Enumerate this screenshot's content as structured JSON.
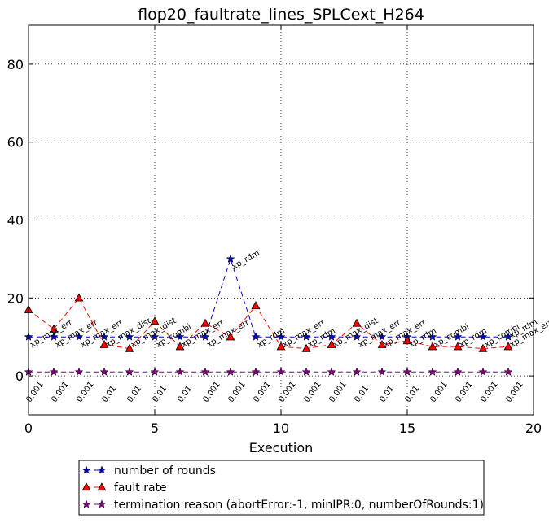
{
  "chart_data": {
    "type": "line",
    "title": "flop20_faultrate_lines_SPLCext_H264",
    "xlabel": "Execution",
    "ylabel": "",
    "xlim": [
      0,
      20
    ],
    "ylim": [
      -10,
      90
    ],
    "xticks": [
      0,
      5,
      10,
      15,
      20
    ],
    "yticks": [
      0,
      20,
      40,
      60,
      80
    ],
    "grid": true,
    "legend_position": "bottom",
    "x": [
      0,
      1,
      2,
      3,
      4,
      5,
      6,
      7,
      8,
      9,
      10,
      11,
      12,
      13,
      14,
      15,
      16,
      17,
      18,
      19
    ],
    "series": [
      {
        "name": "number of rounds",
        "color": "#0000cc",
        "marker": "star",
        "values": [
          10,
          10,
          10,
          10,
          10,
          10,
          10,
          10,
          30,
          10,
          10,
          10,
          10,
          10,
          10,
          10,
          10,
          10,
          10,
          10
        ]
      },
      {
        "name": "fault rate",
        "color": "#ff0000",
        "marker": "triangle",
        "values": [
          17,
          12,
          20,
          8,
          7,
          14,
          7.5,
          13.5,
          10,
          18,
          7.5,
          7,
          8,
          13.5,
          8,
          9,
          7.5,
          7.5,
          7,
          7.5
        ]
      },
      {
        "name": "termination reason (abortError:-1, minIPR:0, numberOfRounds:1)",
        "color": "#800080",
        "marker": "star",
        "values": [
          1,
          1,
          1,
          1,
          1,
          1,
          1,
          1,
          1,
          1,
          1,
          1,
          1,
          1,
          1,
          1,
          1,
          1,
          1,
          1
        ]
      }
    ],
    "round_labels": [
      "xp_max_err",
      "xp_max_err",
      "xp_max_err",
      "xp_max_dist",
      "xp_max_dist",
      "xp_combi",
      "xp_max_err",
      "xp_max_err",
      "xp_rdm",
      "xp_rdm",
      "xp_max_err",
      "xp_rdm",
      "xp_max_dist",
      "xp_max_err",
      "xp_max_err",
      "xp_rdm",
      "xp_combi",
      "xp_rdm",
      "xp_combi",
      "xp_max_err"
    ],
    "round_labels_last": "xp_rdm",
    "termination_labels": [
      "0.001",
      "0.001",
      "0.001",
      "0.01",
      "0.01",
      "0.01",
      "0.01",
      "0.001",
      "0.001",
      "0.001",
      "0.001",
      "0.001",
      "0.001",
      "0.01",
      "0.01",
      "0.01",
      "0.001",
      "0.001",
      "0.001",
      "0.001"
    ]
  }
}
